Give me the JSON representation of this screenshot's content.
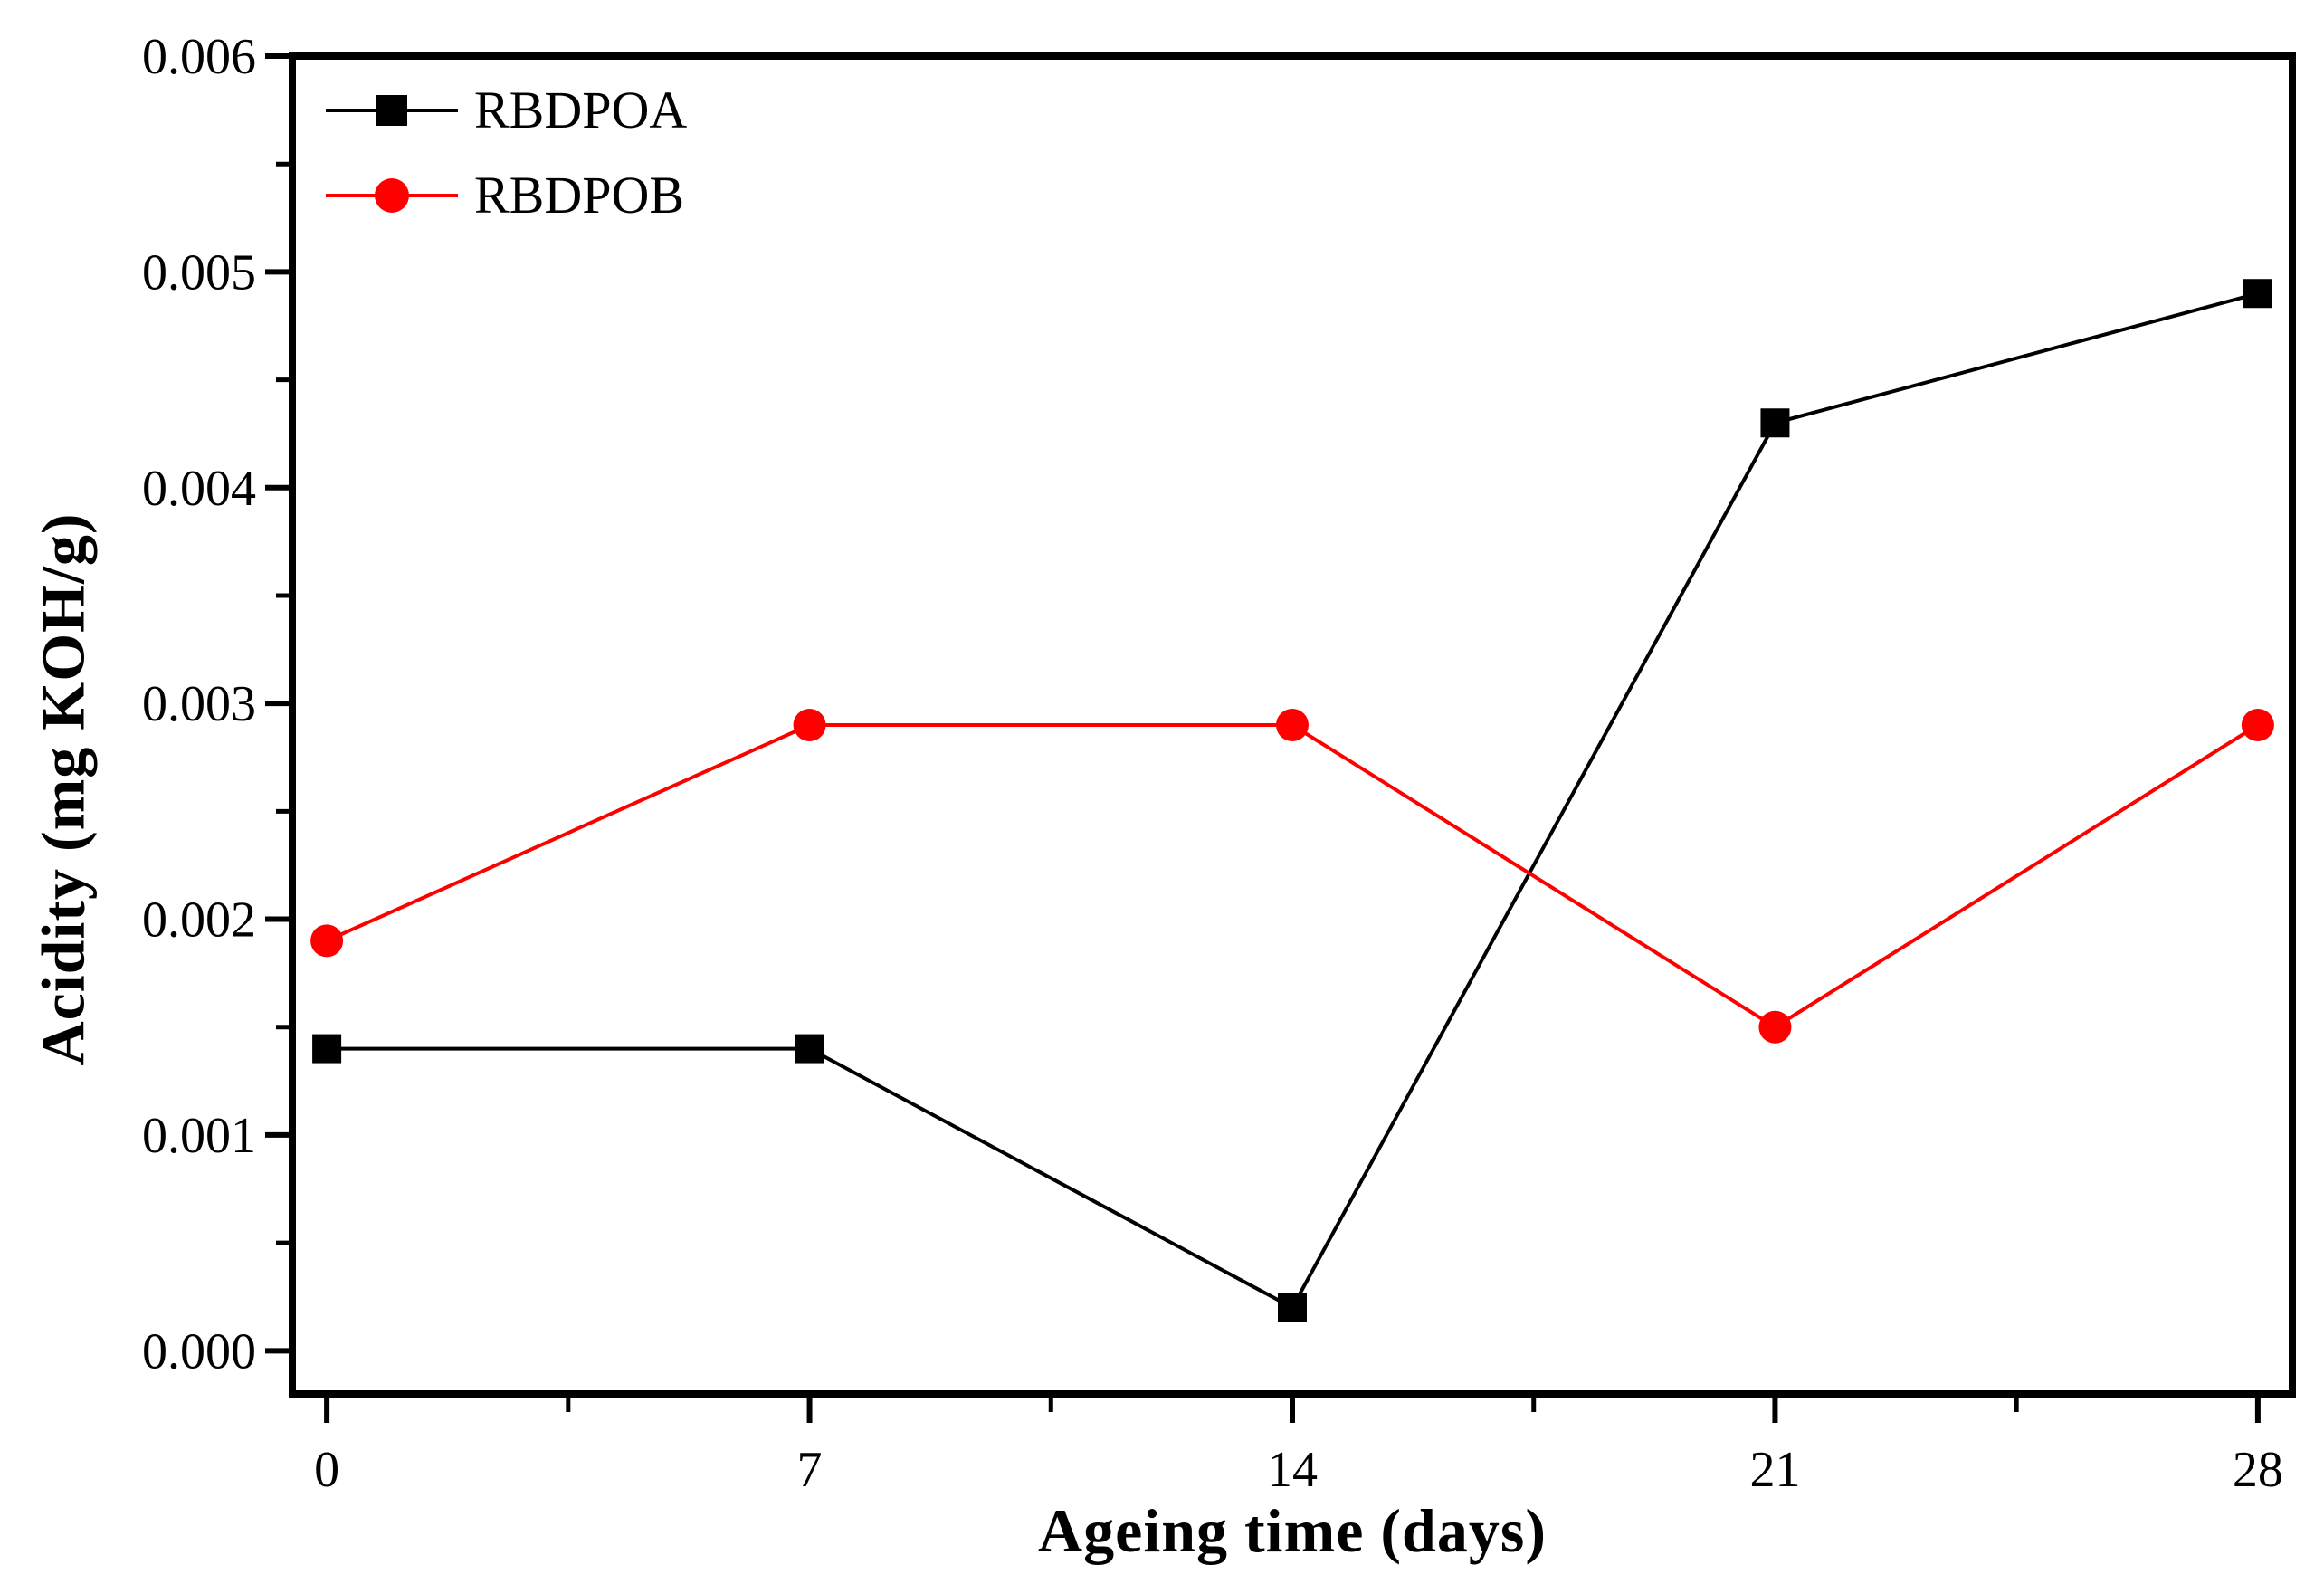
{
  "figure": {
    "background_color": "#ffffff",
    "axis_color": "#000000"
  },
  "chart_data": {
    "type": "line",
    "title": "",
    "xlabel": "Ageing time (days)",
    "ylabel": "Acidity (mg KOH/g)",
    "x": [
      0,
      7,
      14,
      21,
      28
    ],
    "series": [
      {
        "name": "RBDPOA",
        "color": "#000000",
        "marker": "square",
        "values": [
          0.0014,
          0.0014,
          0.0002,
          0.0043,
          0.0049
        ]
      },
      {
        "name": "RBDPOB",
        "color": "#ff0000",
        "marker": "circle",
        "values": [
          0.0019,
          0.0029,
          0.0029,
          0.0015,
          0.0029
        ]
      }
    ],
    "xlim": [
      -0.5,
      28.5
    ],
    "ylim": [
      -0.0002,
      0.006
    ],
    "x_ticks": [
      0,
      7,
      14,
      21,
      28
    ],
    "x_tick_labels": [
      "0",
      "7",
      "14",
      "21",
      "28"
    ],
    "x_minor_ticks": [
      3.5,
      10.5,
      17.5,
      24.5
    ],
    "y_ticks": [
      0,
      0.001,
      0.002,
      0.003,
      0.004,
      0.005,
      0.006
    ],
    "y_tick_labels": [
      "0.000",
      "0.001",
      "0.002",
      "0.003",
      "0.004",
      "0.005",
      "0.006"
    ],
    "y_minor_ticks": [
      0.0005,
      0.0015,
      0.0025,
      0.0035,
      0.0045,
      0.0055
    ],
    "grid": false,
    "legend_position": "top-left-inside"
  }
}
